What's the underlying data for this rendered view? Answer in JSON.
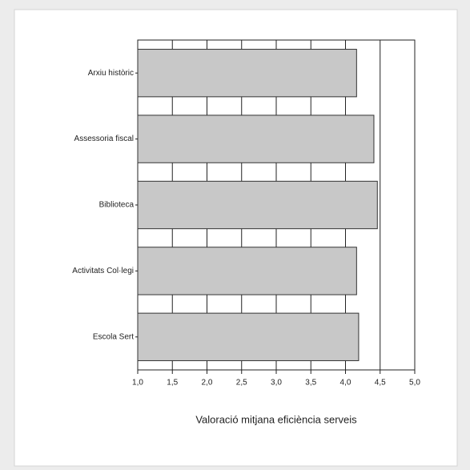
{
  "chart_data": {
    "type": "barh",
    "categories": [
      "Arxiu històric",
      "Assessoria fiscal",
      "Biblioteca",
      "Activitats Col·legi",
      "Escola Sert"
    ],
    "values": [
      4.16,
      4.41,
      4.46,
      4.16,
      4.19
    ],
    "color": "#c8c8c8",
    "x_label": "Valoració mitjana eficiència serveis",
    "xlim": [
      1.0,
      5.0
    ],
    "xticks": [
      {
        "value": 1.0,
        "label": "1,0"
      },
      {
        "value": 1.5,
        "label": "1,5"
      },
      {
        "value": 2.0,
        "label": "2,0"
      },
      {
        "value": 2.5,
        "label": "2,5"
      },
      {
        "value": 3.0,
        "label": "3,0"
      },
      {
        "value": 3.5,
        "label": "3,5"
      },
      {
        "value": 4.0,
        "label": "4,0"
      },
      {
        "value": 4.5,
        "label": "4,5"
      },
      {
        "value": 5.0,
        "label": "5,0"
      }
    ],
    "grid": true
  }
}
